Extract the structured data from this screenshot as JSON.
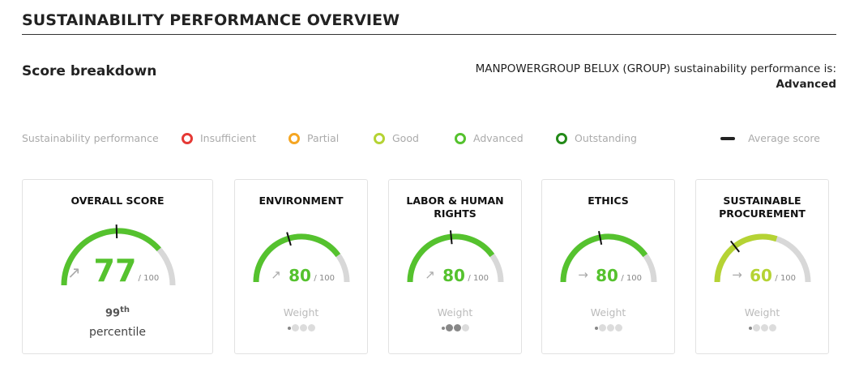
{
  "header": {
    "title": "SUSTAINABILITY PERFORMANCE OVERVIEW",
    "subtitle": "Score breakdown",
    "performance_text": "MANPOWERGROUP BELUX (GROUP) sustainability performance is:",
    "performance_level": "Advanced"
  },
  "legend": {
    "label": "Sustainability performance",
    "items": [
      {
        "label": "Insufficient",
        "color": "#e53935"
      },
      {
        "label": "Partial",
        "color": "#f5a623"
      },
      {
        "label": "Good",
        "color": "#b5d334"
      },
      {
        "label": "Advanced",
        "color": "#55c22e"
      },
      {
        "label": "Outstanding",
        "color": "#238a18"
      }
    ],
    "average_label": "Average score"
  },
  "colors": {
    "track": "#d8d8d8",
    "advanced": "#55c22e",
    "good": "#b5d334",
    "muted": "#aaaaaa",
    "weight_dot": "#999999"
  },
  "cards": [
    {
      "title": "OVERALL SCORE",
      "score": "77",
      "out_of": "/ 100",
      "score_fraction": 0.77,
      "average_fraction": 0.49,
      "color": "#55c22e",
      "trend": "up-right",
      "trend_icon": "↗",
      "percentile_num": "99",
      "percentile_suffix": "th",
      "percentile_label": "percentile"
    },
    {
      "title": "ENVIRONMENT",
      "score": "80",
      "out_of": "/ 100",
      "score_fraction": 0.8,
      "average_fraction": 0.41,
      "color": "#55c22e",
      "trend": "up-right",
      "trend_icon": "↗",
      "weight_label": "Weight",
      "weight_level": 1
    },
    {
      "title": "LABOR & HUMAN RIGHTS",
      "score": "80",
      "out_of": "/ 100",
      "score_fraction": 0.8,
      "average_fraction": 0.47,
      "color": "#55c22e",
      "trend": "up-right",
      "trend_icon": "↗",
      "weight_label": "Weight",
      "weight_level": 3
    },
    {
      "title": "ETHICS",
      "score": "80",
      "out_of": "/ 100",
      "score_fraction": 0.8,
      "average_fraction": 0.44,
      "color": "#55c22e",
      "trend": "right",
      "trend_icon": "→",
      "weight_label": "Weight",
      "weight_level": 1
    },
    {
      "title": "SUSTAINABLE PROCUREMENT",
      "score": "60",
      "out_of": "/ 100",
      "score_fraction": 0.6,
      "average_fraction": 0.29,
      "color": "#b5d334",
      "trend": "right",
      "trend_icon": "→",
      "weight_label": "Weight",
      "weight_level": 1
    }
  ]
}
